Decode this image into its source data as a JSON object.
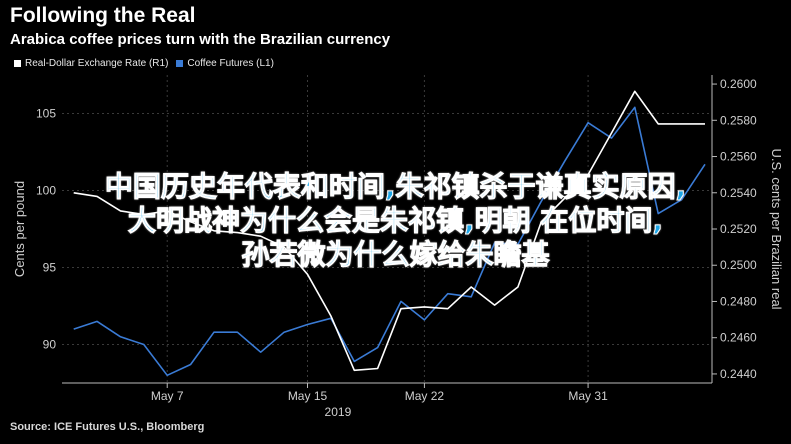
{
  "header": {
    "title": "Following the Real",
    "subtitle": "Arabica coffee prices turn with the Brazilian currency"
  },
  "legend": [
    {
      "label": "Real-Dollar Exchange Rate (R1)",
      "color": "#ffffff"
    },
    {
      "label": "Coffee Futures (L1)",
      "color": "#3a7bd5"
    }
  ],
  "source": "Source: ICE Futures U.S., Bloomberg",
  "overlay": {
    "line1": "中国历史年代表和时间,朱祁镇杀于谦真实原因,",
    "line2": "大明战神为什么会是朱祁镇,明朝 在位时间,",
    "line3": "孙若微为什么嫁给朱瞻基"
  },
  "chart_data": {
    "type": "line",
    "x": [
      1,
      2,
      3,
      4,
      5,
      6,
      7,
      8,
      9,
      10,
      11,
      12,
      13,
      14,
      15,
      16,
      17,
      18,
      19,
      20,
      21,
      22,
      23,
      24,
      25,
      26,
      27,
      28
    ],
    "x_ticks": [
      {
        "label": "May 7",
        "x": 5
      },
      {
        "label": "May 15",
        "x": 11
      },
      {
        "label": "May 22",
        "x": 16
      },
      {
        "label": "May 31",
        "x": 23
      }
    ],
    "x_sublabel": "2019",
    "left_axis": {
      "label": "Cents per pound",
      "range": [
        87.5,
        107.5
      ],
      "ticks": [
        90,
        95,
        100,
        105
      ]
    },
    "right_axis": {
      "label": "U.S. cents per Brazilian real",
      "range": [
        0.2435,
        0.2605
      ],
      "ticks": [
        "0.2440",
        "0.2460",
        "0.2480",
        "0.2500",
        "0.2520",
        "0.2540",
        "0.2560",
        "0.2580",
        "0.2600"
      ]
    },
    "series": [
      {
        "name": "Coffee Futures (L1)",
        "axis": "left",
        "color": "#3a7bd5",
        "values": [
          91.0,
          91.5,
          90.5,
          90.0,
          88.0,
          88.7,
          90.8,
          90.8,
          89.5,
          90.8,
          91.3,
          91.7,
          88.9,
          89.8,
          92.8,
          91.6,
          93.3,
          93.1,
          96.6,
          96.5,
          99.3,
          101.9,
          104.4,
          103.4,
          105.4,
          98.5,
          99.4,
          101.7
        ]
      },
      {
        "name": "Real-Dollar Exchange Rate (R1)",
        "axis": "right",
        "color": "#ffffff",
        "values": [
          0.254,
          0.2538,
          0.253,
          0.2528,
          0.253,
          0.2524,
          0.2519,
          0.2518,
          0.2516,
          0.251,
          0.2495,
          0.2472,
          0.2442,
          0.2443,
          0.2476,
          0.2477,
          0.2476,
          0.2488,
          0.2478,
          0.2488,
          0.2524,
          0.2537,
          0.255,
          0.2573,
          0.2596,
          0.2578,
          0.2578,
          0.2578
        ]
      }
    ]
  }
}
